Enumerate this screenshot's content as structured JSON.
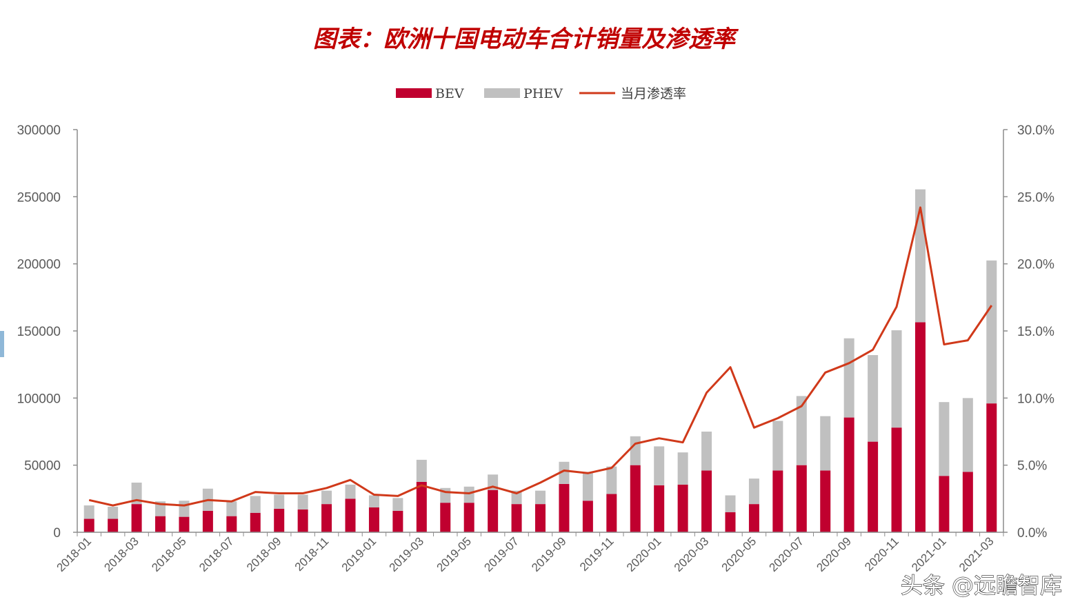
{
  "chart_data": {
    "type": "bar",
    "stacked": true,
    "title": "图表：欧洲十国电动车合计销量及渗透率",
    "legend": {
      "position": "top-center"
    },
    "legend_labels": [
      "BEV",
      "PHEV",
      "当月渗透率"
    ],
    "categories": [
      "2018-01",
      "2018-02",
      "2018-03",
      "2018-04",
      "2018-05",
      "2018-06",
      "2018-07",
      "2018-08",
      "2018-09",
      "2018-10",
      "2018-11",
      "2018-12",
      "2019-01",
      "2019-02",
      "2019-03",
      "2019-04",
      "2019-05",
      "2019-06",
      "2019-07",
      "2019-08",
      "2019-09",
      "2019-10",
      "2019-11",
      "2019-12",
      "2020-01",
      "2020-02",
      "2020-03",
      "2020-04",
      "2020-05",
      "2020-06",
      "2020-07",
      "2020-08",
      "2020-09",
      "2020-10",
      "2020-11",
      "2020-12",
      "2021-01",
      "2021-02",
      "2021-03"
    ],
    "x_tick_labels": [
      "2018-01",
      "2018-03",
      "2018-05",
      "2018-07",
      "2018-09",
      "2018-11",
      "2019-01",
      "2019-03",
      "2019-05",
      "2019-07",
      "2019-09",
      "2019-11",
      "2020-01",
      "2020-03",
      "2020-05",
      "2020-07",
      "2020-09",
      "2020-11",
      "2021-01",
      "2021-03"
    ],
    "series": [
      {
        "name": "BEV",
        "kind": "bar",
        "axis": "left",
        "color": "#c0002f",
        "values": [
          10000,
          10000,
          21000,
          12000,
          11500,
          16000,
          12000,
          14500,
          17500,
          17000,
          21000,
          25000,
          18500,
          16000,
          37500,
          22000,
          22000,
          31500,
          21000,
          21000,
          36000,
          23500,
          28500,
          50000,
          35000,
          35500,
          46000,
          15000,
          21000,
          46000,
          50000,
          46000,
          85500,
          67500,
          78000,
          156500,
          42000,
          45000,
          96000
        ]
      },
      {
        "name": "PHEV",
        "kind": "bar",
        "axis": "left",
        "color": "#c0c0c0",
        "values": [
          10000,
          9000,
          16000,
          11000,
          12000,
          16500,
          11000,
          12500,
          10500,
          11000,
          10000,
          10500,
          9000,
          9500,
          16500,
          11000,
          12000,
          11500,
          10000,
          10000,
          16500,
          21500,
          20500,
          21500,
          29000,
          24000,
          29000,
          12500,
          19000,
          37000,
          51500,
          40500,
          59000,
          64500,
          72500,
          99000,
          55000,
          55000,
          106500
        ]
      },
      {
        "name": "当月渗透率",
        "kind": "line",
        "axis": "right",
        "color": "#d0391a",
        "values": [
          2.4,
          2.0,
          2.4,
          2.1,
          2.0,
          2.4,
          2.3,
          3.0,
          2.9,
          2.9,
          3.3,
          3.9,
          2.8,
          2.7,
          3.5,
          3.0,
          2.9,
          3.4,
          2.9,
          3.7,
          4.6,
          4.4,
          4.8,
          6.6,
          7.0,
          6.7,
          10.4,
          12.3,
          7.8,
          8.5,
          9.4,
          11.9,
          12.6,
          13.6,
          16.8,
          24.2,
          14.0,
          14.3,
          16.9
        ]
      }
    ],
    "y_left": {
      "min": 0,
      "max": 300000,
      "ticks": [
        0,
        50000,
        100000,
        150000,
        200000,
        250000,
        300000
      ],
      "tick_labels": [
        "0",
        "50000",
        "100000",
        "150000",
        "200000",
        "250000",
        "300000"
      ]
    },
    "y_right": {
      "min": 0,
      "max": 30,
      "unit": "%",
      "ticks": [
        0,
        5,
        10,
        15,
        20,
        25,
        30
      ],
      "tick_labels": [
        "0.0%",
        "5.0%",
        "10.0%",
        "15.0%",
        "20.0%",
        "25.0%",
        "30.0%"
      ]
    },
    "grid": false
  },
  "watermark": "头条 @远瞻智库"
}
